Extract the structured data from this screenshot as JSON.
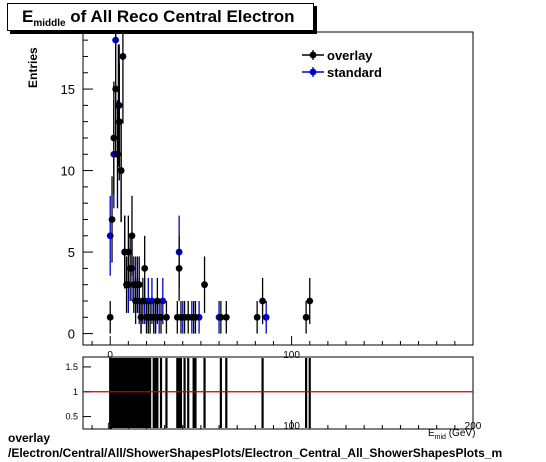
{
  "chart_data": {
    "type": "scatter",
    "title_main": "E",
    "title_sub": "middle",
    "title_rest": " of All Reco Central Electron",
    "ylabel": "Entries",
    "xlabel": "E",
    "xlabel_sub": "mid",
    "xlabel_rest": " (GeV)",
    "xlim": [
      -15,
      200
    ],
    "ylim": [
      -0.7,
      18.5
    ],
    "xticks": [
      0,
      100,
      200
    ],
    "yticks": [
      0,
      5,
      10,
      15
    ],
    "ratio_ylim": [
      0.25,
      1.7
    ],
    "ratio_yticks": [
      0.5,
      1,
      1.5
    ],
    "ratio_line": 1,
    "legend": [
      "overlay",
      "standard"
    ],
    "colors": {
      "overlay": "#000000",
      "standard": "#0000cc",
      "ratio_line": "#cc0000"
    },
    "series": [
      {
        "name": "overlay",
        "points": [
          [
            0,
            1
          ],
          [
            1,
            7
          ],
          [
            2,
            12
          ],
          [
            3,
            15
          ],
          [
            4,
            11
          ],
          [
            4.5,
            14
          ],
          [
            5,
            13
          ],
          [
            6,
            10
          ],
          [
            7,
            17
          ],
          [
            8,
            5
          ],
          [
            9,
            3
          ],
          [
            10,
            5
          ],
          [
            11,
            4
          ],
          [
            12,
            6
          ],
          [
            13,
            3
          ],
          [
            14,
            2
          ],
          [
            15,
            3
          ],
          [
            16,
            3
          ],
          [
            17,
            1
          ],
          [
            18,
            2
          ],
          [
            19,
            4
          ],
          [
            20,
            1
          ],
          [
            21,
            1
          ],
          [
            22,
            1
          ],
          [
            24,
            1
          ],
          [
            25,
            1
          ],
          [
            26,
            2
          ],
          [
            28,
            1
          ],
          [
            31,
            1
          ],
          [
            37,
            1
          ],
          [
            38,
            4
          ],
          [
            39,
            1
          ],
          [
            41,
            1
          ],
          [
            43,
            1
          ],
          [
            46,
            1
          ],
          [
            47,
            1
          ],
          [
            52,
            3
          ],
          [
            61,
            1
          ],
          [
            64,
            1
          ],
          [
            81,
            1
          ],
          [
            84,
            2
          ],
          [
            108,
            1
          ],
          [
            110,
            2
          ]
        ]
      },
      {
        "name": "standard",
        "points": [
          [
            0,
            6
          ],
          [
            2,
            11
          ],
          [
            3,
            18
          ],
          [
            5,
            14
          ],
          [
            6,
            10
          ],
          [
            8,
            5
          ],
          [
            10,
            3
          ],
          [
            12,
            4
          ],
          [
            14,
            3
          ],
          [
            16,
            2
          ],
          [
            17,
            1
          ],
          [
            19,
            2
          ],
          [
            21,
            2
          ],
          [
            23,
            2
          ],
          [
            25,
            1
          ],
          [
            27,
            1
          ],
          [
            29,
            2
          ],
          [
            38,
            5
          ],
          [
            40,
            1
          ],
          [
            45,
            1
          ],
          [
            49,
            1
          ],
          [
            60,
            1
          ],
          [
            86,
            1
          ]
        ]
      }
    ],
    "ratio_bars_x": [
      0,
      1,
      2,
      3,
      4,
      5,
      6,
      7,
      8,
      9,
      10,
      11,
      12,
      13,
      14,
      15,
      16,
      17,
      18,
      19,
      20,
      21,
      22,
      24,
      25,
      26,
      28,
      31,
      37,
      38,
      39,
      41,
      43,
      46,
      47,
      52,
      61,
      64,
      84,
      108,
      110
    ]
  },
  "footer": {
    "line1": "overlay",
    "line2": "/Electron/Central/All/ShowerShapesPlots/Electron_Central_All_ShowerShapesPlots_m"
  }
}
